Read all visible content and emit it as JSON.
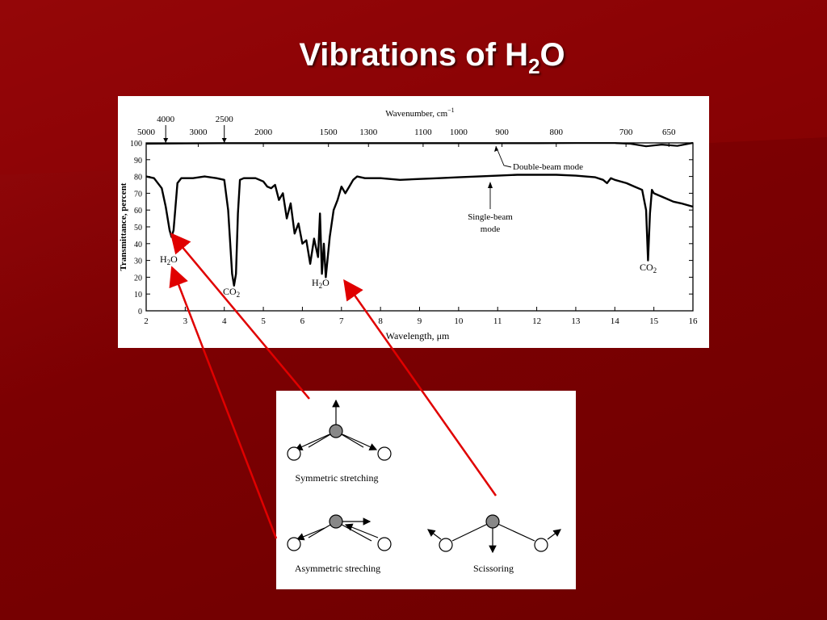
{
  "slide": {
    "title_main": "Vibrations of H",
    "title_sub": "2",
    "title_end": "O"
  },
  "colors": {
    "background": "#7c0002",
    "arrow": "#e00000",
    "trace": "#000000",
    "panel": "#ffffff"
  },
  "chart_data": {
    "type": "line",
    "xlabel": "Wavelength, μm",
    "ylabel": "Transmittance, percent",
    "top_axis_label": "Wavenumber, cm",
    "top_axis_label_sup": "−1",
    "xlim": [
      2,
      16
    ],
    "ylim": [
      0,
      100
    ],
    "x_ticks": [
      "2",
      "3",
      "4",
      "5",
      "6",
      "7",
      "8",
      "9",
      "10",
      "11",
      "12",
      "13",
      "14",
      "15",
      "16"
    ],
    "y_ticks": [
      "0",
      "10",
      "20",
      "30",
      "40",
      "50",
      "60",
      "70",
      "80",
      "90",
      "100"
    ],
    "top_ticks": [
      {
        "label": "5000",
        "um": 2.0
      },
      {
        "label": "3000",
        "um": 3.333
      },
      {
        "label": "2000",
        "um": 5.0
      },
      {
        "label": "1500",
        "um": 6.667
      },
      {
        "label": "1300",
        "um": 7.692
      },
      {
        "label": "1100",
        "um": 9.091
      },
      {
        "label": "1000",
        "um": 10.0
      },
      {
        "label": "900",
        "um": 11.111
      },
      {
        "label": "800",
        "um": 12.5
      },
      {
        "label": "700",
        "um": 14.286
      },
      {
        "label": "650",
        "um": 15.385
      }
    ],
    "top_marked": [
      {
        "label": "4000",
        "um": 2.5
      },
      {
        "label": "2500",
        "um": 4.0
      }
    ],
    "series": [
      {
        "name": "Double-beam mode",
        "x": [
          2.0,
          3.0,
          4.0,
          5.0,
          6.0,
          7.0,
          8.0,
          9.0,
          10.0,
          11.0,
          12.0,
          13.0,
          14.0,
          14.4,
          14.8,
          15.2,
          15.6,
          16.0
        ],
        "y": [
          99.5,
          99.7,
          99.8,
          99.8,
          99.8,
          99.8,
          99.8,
          99.8,
          99.8,
          99.8,
          99.8,
          99.9,
          99.9,
          99.5,
          98.0,
          99.0,
          98.2,
          100.0
        ]
      },
      {
        "name": "Single-beam mode",
        "x": [
          2.0,
          2.2,
          2.4,
          2.5,
          2.6,
          2.65,
          2.7,
          2.75,
          2.8,
          2.9,
          3.0,
          3.2,
          3.5,
          3.8,
          4.0,
          4.1,
          4.2,
          4.25,
          4.3,
          4.35,
          4.4,
          4.5,
          4.8,
          5.0,
          5.1,
          5.2,
          5.3,
          5.4,
          5.5,
          5.6,
          5.7,
          5.8,
          5.9,
          6.0,
          6.1,
          6.2,
          6.3,
          6.4,
          6.45,
          6.5,
          6.55,
          6.6,
          6.7,
          6.8,
          6.9,
          7.0,
          7.1,
          7.2,
          7.3,
          7.4,
          7.6,
          8.0,
          8.5,
          9.0,
          9.5,
          10.0,
          10.5,
          11.0,
          11.5,
          12.0,
          12.5,
          13.0,
          13.5,
          13.7,
          13.8,
          13.9,
          14.0,
          14.3,
          14.5,
          14.7,
          14.8,
          14.85,
          14.9,
          14.95,
          15.0,
          15.1,
          15.3,
          15.5,
          15.7,
          16.0
        ],
        "y": [
          80,
          79,
          73,
          62,
          48,
          44,
          48,
          62,
          76,
          79,
          79,
          79,
          80,
          79,
          78,
          60,
          22,
          15,
          22,
          58,
          78,
          79,
          79,
          77,
          74,
          73,
          75,
          66,
          70,
          55,
          64,
          46,
          52,
          40,
          42,
          28,
          43,
          32,
          58,
          22,
          40,
          20,
          44,
          60,
          66,
          74,
          70,
          74,
          78,
          80,
          79,
          79,
          78,
          78.5,
          79,
          79.5,
          80,
          80.5,
          81,
          81,
          81,
          80.5,
          79.5,
          78,
          76,
          79,
          78,
          76,
          74,
          72,
          60,
          30,
          58,
          72,
          70,
          69,
          67,
          65,
          64,
          62
        ]
      }
    ],
    "annotations": [
      {
        "text": "H",
        "sub": "2",
        "end": "O",
        "near_um": 2.7
      },
      {
        "text": "CO",
        "sub": "2",
        "end": "",
        "near_um": 4.26
      },
      {
        "text": "H",
        "sub": "2",
        "end": "O",
        "near_um": 6.3
      },
      {
        "text": "CO",
        "sub": "2",
        "end": "",
        "near_um": 14.9
      },
      {
        "text": "Double-beam mode"
      },
      {
        "text": "Single-beam"
      },
      {
        "text": "mode"
      }
    ]
  },
  "modes": {
    "symmetric": "Symmetric stretching",
    "asymmetric": "Asymmetric streching",
    "scissoring": "Scissoring"
  }
}
